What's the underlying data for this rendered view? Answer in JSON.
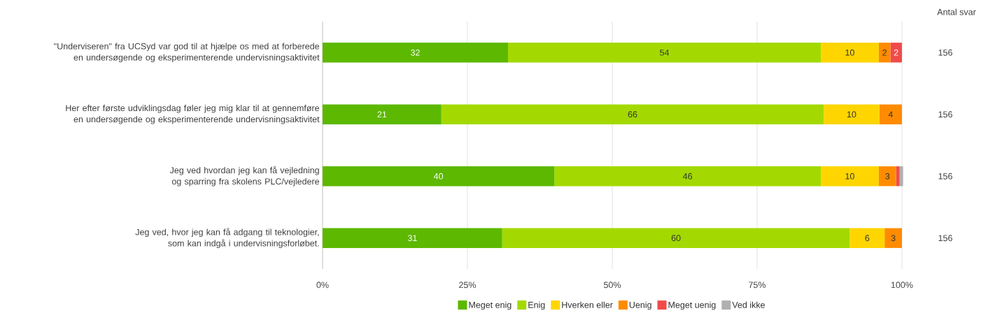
{
  "chart_data": {
    "type": "bar",
    "orientation": "horizontal",
    "stacked": true,
    "categories": [
      "\"Underviseren\" fra UCSyd var god til at hjælpe os med at forberede en undersøgende og eksperimenterende undervisningsaktivitet",
      "Her efter første udviklingsdag føler jeg mig klar til at gennemføre en undersøgende og eksperimenterende undervisningsaktivitet",
      "Jeg ved hvordan jeg kan få vejledning og sparring fra skolens PLC/vejledere",
      "Jeg ved, hvor jeg kan få adgang til teknologier, som kan indgå i undervisningsforløbet."
    ],
    "series": [
      {
        "name": "Meget enig",
        "color": "#5cb800",
        "values": [
          32,
          20.5,
          40,
          31
        ],
        "value_labels": [
          "32",
          "21",
          "40",
          "31"
        ]
      },
      {
        "name": "Enig",
        "color": "#a3d900",
        "values": [
          54,
          66,
          46,
          60
        ],
        "value_labels": [
          "54",
          "66",
          "46",
          "60"
        ]
      },
      {
        "name": "Hverken eller",
        "color": "#ffd500",
        "values": [
          10,
          9.6,
          10,
          6
        ],
        "value_labels": [
          "10",
          "10",
          "10",
          "6"
        ]
      },
      {
        "name": "Uenig",
        "color": "#ff8c00",
        "values": [
          2,
          3.9,
          3,
          3
        ],
        "value_labels": [
          "2",
          "4",
          "3",
          "3"
        ]
      },
      {
        "name": "Meget uenig",
        "color": "#f04b4b",
        "values": [
          2,
          null,
          0.6,
          null
        ],
        "value_labels": [
          "2",
          null,
          null,
          null
        ]
      },
      {
        "name": "Ved ikke",
        "color": "#b0b0b0",
        "values": [
          null,
          null,
          0.6,
          null
        ],
        "value_labels": [
          null,
          null,
          null,
          null
        ]
      }
    ],
    "xlim": [
      0,
      100
    ],
    "xticks": [
      {
        "value": 0,
        "label": "0%"
      },
      {
        "value": 25,
        "label": "25%"
      },
      {
        "value": 50,
        "label": "50%"
      },
      {
        "value": 75,
        "label": "75%"
      },
      {
        "value": 100,
        "label": "100%"
      }
    ],
    "grid": "x",
    "legend": "bottom",
    "annotations": [
      "Antal svar",
      "156",
      "156",
      "156",
      "156"
    ]
  }
}
